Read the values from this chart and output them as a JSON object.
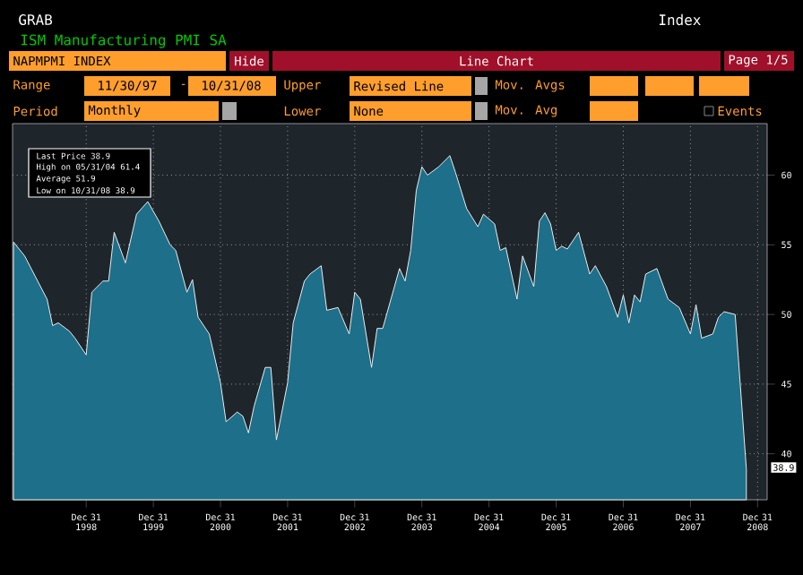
{
  "chart_data": {
    "type": "area",
    "title": "ISM Manufacturing PMI SA",
    "subtitle": "NAPMPMI INDEX",
    "x": [
      "1997-11-30",
      "1998-01-31",
      "1998-05-31",
      "1998-06-30",
      "1998-07-31",
      "1998-09-30",
      "1998-10-31",
      "1998-12-31",
      "1999-01-31",
      "1999-03-31",
      "1999-04-30",
      "1999-05-31",
      "1999-07-31",
      "1999-09-30",
      "1999-11-30",
      "2000-01-31",
      "2000-03-31",
      "2000-04-30",
      "2000-06-30",
      "2000-07-31",
      "2000-08-31",
      "2000-10-31",
      "2000-12-31",
      "2001-01-31",
      "2001-03-31",
      "2001-04-30",
      "2001-05-31",
      "2001-06-30",
      "2001-08-31",
      "2001-09-30",
      "2001-10-31",
      "2001-12-31",
      "2002-01-31",
      "2002-03-31",
      "2002-04-30",
      "2002-06-30",
      "2002-07-31",
      "2002-09-30",
      "2002-11-30",
      "2002-12-31",
      "2003-01-31",
      "2003-03-31",
      "2003-04-30",
      "2003-05-31",
      "2003-08-31",
      "2003-09-30",
      "2003-10-31",
      "2003-11-30",
      "2003-12-31",
      "2004-01-31",
      "2004-03-31",
      "2004-05-31",
      "2004-06-30",
      "2004-08-31",
      "2004-10-31",
      "2004-11-30",
      "2005-01-31",
      "2005-02-28",
      "2005-03-31",
      "2005-05-31",
      "2005-06-30",
      "2005-08-31",
      "2005-09-30",
      "2005-10-31",
      "2005-11-30",
      "2005-12-31",
      "2006-01-31",
      "2006-02-28",
      "2006-04-30",
      "2006-06-30",
      "2006-07-31",
      "2006-09-30",
      "2006-11-30",
      "2006-12-31",
      "2007-01-31",
      "2007-02-28",
      "2007-03-31",
      "2007-04-30",
      "2007-06-30",
      "2007-08-31",
      "2007-10-31",
      "2007-12-31",
      "2008-01-31",
      "2008-02-29",
      "2008-04-30",
      "2008-05-31",
      "2008-06-30",
      "2008-08-31",
      "2008-10-31"
    ],
    "series": [
      {
        "color": "#1d6f8a",
        "values": [
          55.2,
          54.2,
          51.1,
          49.2,
          49.4,
          48.8,
          48.3,
          47.1,
          51.6,
          52.4,
          52.4,
          55.9,
          53.7,
          57.2,
          58.1,
          56.7,
          55.0,
          54.6,
          51.6,
          52.5,
          49.8,
          48.6,
          45.1,
          42.3,
          43.0,
          42.7,
          41.5,
          43.4,
          46.2,
          46.2,
          41.0,
          45.1,
          49.4,
          52.4,
          52.9,
          53.5,
          50.3,
          50.5,
          48.6,
          51.6,
          51.1,
          46.2,
          49.0,
          49.0,
          53.3,
          52.4,
          54.6,
          58.9,
          60.6,
          60.0,
          60.6,
          61.4,
          60.2,
          57.6,
          56.3,
          57.2,
          56.5,
          54.6,
          54.8,
          51.1,
          54.2,
          52.0,
          56.7,
          57.3,
          56.5,
          54.6,
          54.9,
          54.7,
          55.9,
          52.9,
          53.5,
          52.0,
          49.8,
          51.4,
          49.4,
          51.4,
          50.9,
          52.9,
          53.3,
          51.1,
          50.5,
          48.6,
          50.7,
          48.3,
          48.6,
          49.8,
          50.2,
          50.0,
          38.9
        ]
      }
    ],
    "xlim": [
      "1997-11-25",
      "2009-02-20"
    ],
    "xticks": [
      {
        "value": "1998-12-31",
        "label": "Dec 31 1998"
      },
      {
        "value": "1999-12-31",
        "label": "Dec 31 1999"
      },
      {
        "value": "2000-12-31",
        "label": "Dec 31 2000"
      },
      {
        "value": "2001-12-31",
        "label": "Dec 31 2001"
      },
      {
        "value": "2002-12-31",
        "label": "Dec 31 2002"
      },
      {
        "value": "2003-12-31",
        "label": "Dec 31 2003"
      },
      {
        "value": "2004-12-31",
        "label": "Dec 31 2004"
      },
      {
        "value": "2005-12-31",
        "label": "Dec 31 2005"
      },
      {
        "value": "2006-12-31",
        "label": "Dec 31 2006"
      },
      {
        "value": "2007-12-31",
        "label": "Dec 31 2007"
      },
      {
        "value": "2008-12-31",
        "label": "Dec 31 2008"
      }
    ],
    "ylim": [
      36.7,
      63.7
    ],
    "yticks": [
      40,
      45,
      50,
      55,
      60
    ],
    "grid": true,
    "annotations": [
      "GRAB",
      "Index",
      "Hide",
      "Line Chart",
      "Page 1/5",
      "Range",
      "11/30/97",
      "-",
      "10/31/08",
      "Upper",
      "Revised Line",
      "Mov. Avgs",
      "Period",
      "Monthly",
      "Lower",
      "None",
      "Mov. Avg",
      "Events",
      "Last Price 38.9",
      "High on 05/31/04 61.4",
      "Average 51.9",
      "Low on 10/31/08 38.9",
      "38.9"
    ]
  }
}
